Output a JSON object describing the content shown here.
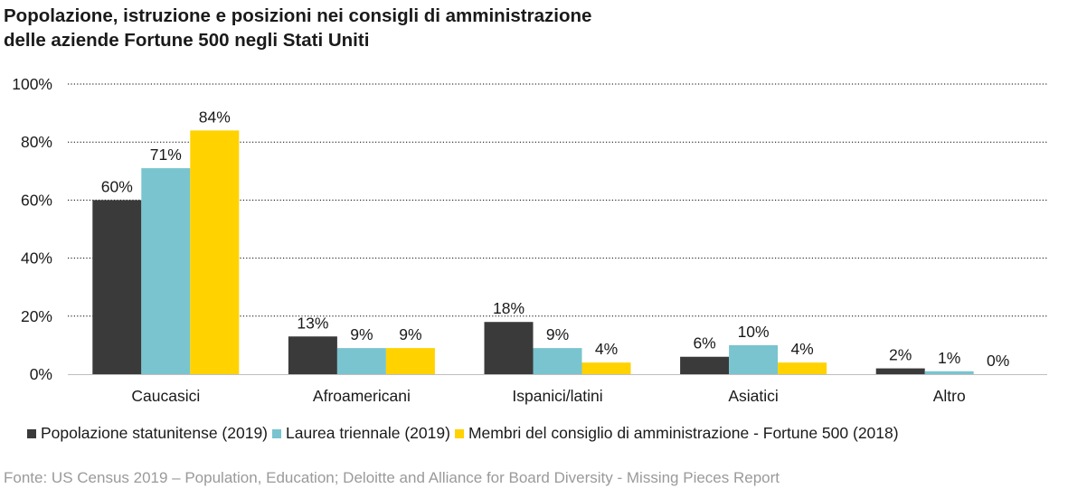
{
  "title_line1": "Popolazione, istruzione e posizioni nei consigli di amministrazione",
  "title_line2": "delle aziende Fortune 500 negli Stati Uniti",
  "source": "Fonte: US Census 2019 – Population, Education; Deloitte and Alliance for Board Diversity - Missing Pieces Report",
  "colors": {
    "series": [
      "#3a3a3a",
      "#79c4cf",
      "#ffd200"
    ],
    "grid": "#000000",
    "text": "#1a1a1a",
    "source": "#9a9a9a"
  },
  "chart_data": {
    "type": "bar",
    "categories": [
      "Caucasici",
      "Afroamericani",
      "Ispanici/latini",
      "Asiatici",
      "Altro"
    ],
    "series": [
      {
        "name": "Popolazione statunitense (2019)",
        "values": [
          60,
          13,
          18,
          6,
          2
        ],
        "labels": [
          "60%",
          "13%",
          "18%",
          "6%",
          "2%"
        ]
      },
      {
        "name": "Laurea triennale (2019)",
        "values": [
          71,
          9,
          9,
          10,
          1
        ],
        "labels": [
          "71%",
          "9%",
          "9%",
          "10%",
          "1%"
        ]
      },
      {
        "name": "Membri del consiglio di amministrazione - Fortune 500 (2018)",
        "values": [
          84,
          9,
          4,
          4,
          0
        ],
        "labels": [
          "84%",
          "9%",
          "4%",
          "4%",
          "0%"
        ]
      }
    ],
    "yticks": [
      "0%",
      "20%",
      "40%",
      "60%",
      "80%",
      "100%"
    ],
    "ylim": [
      0,
      100
    ],
    "grid": true,
    "grid_style": "dotted",
    "legend_position": "bottom"
  }
}
